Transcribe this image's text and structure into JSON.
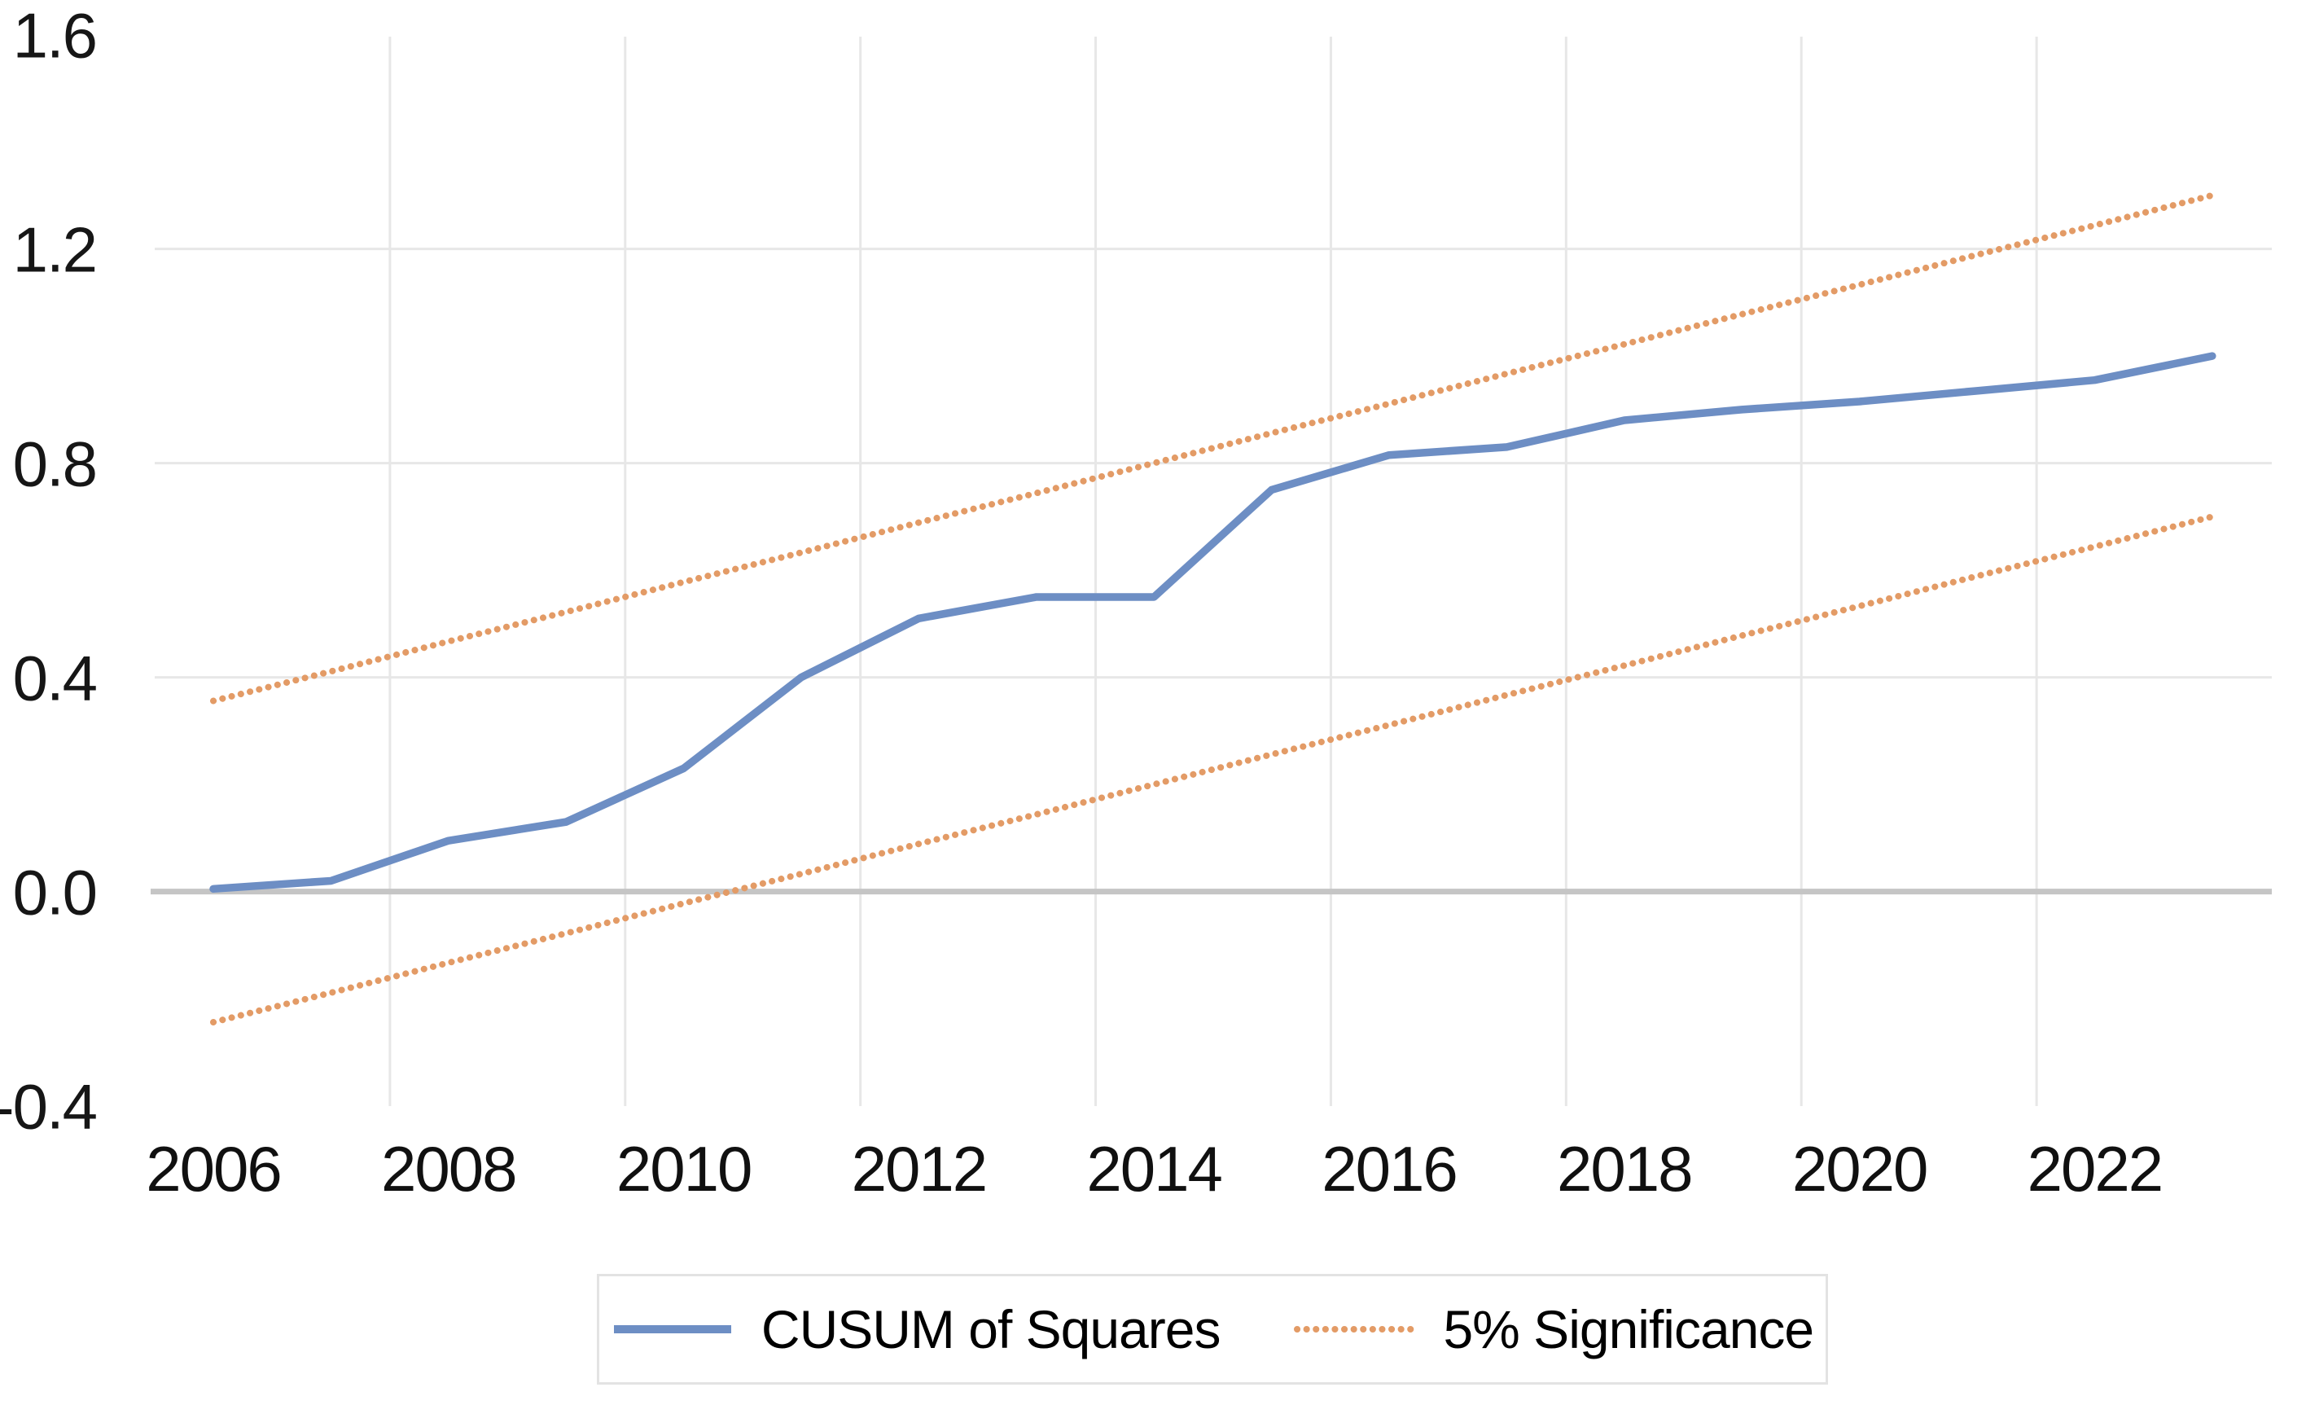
{
  "chart_data": {
    "type": "line",
    "title": "",
    "xlabel": "",
    "ylabel": "",
    "x": [
      2006,
      2007,
      2008,
      2009,
      2010,
      2011,
      2012,
      2013,
      2014,
      2015,
      2016,
      2017,
      2018,
      2019,
      2020,
      2021,
      2022,
      2023
    ],
    "x_tick_labels": [
      "2006",
      "2008",
      "2010",
      "2012",
      "2014",
      "2016",
      "2018",
      "2020",
      "2022"
    ],
    "y_tick_labels": [
      "1.6",
      "1.2",
      "0.8",
      "0.4",
      "0.0",
      "-0.4"
    ],
    "y_tick_values": [
      1.6,
      1.2,
      0.8,
      0.4,
      0.0,
      -0.4
    ],
    "ylim": [
      -0.4,
      1.6
    ],
    "grid": "on",
    "legend_position": "bottom",
    "series": [
      {
        "name": "CUSUM of Squares",
        "style": "solid",
        "color": "#6D8EC4",
        "values": [
          0.005,
          0.02,
          0.095,
          0.13,
          0.23,
          0.4,
          0.51,
          0.55,
          0.55,
          0.75,
          0.815,
          0.83,
          0.88,
          0.9,
          0.915,
          0.935,
          0.955,
          1.0
        ]
      },
      {
        "name": "5% Significance (upper bound)",
        "style": "dotted",
        "color": "#E39B66",
        "values": [
          0.356,
          0.411,
          0.467,
          0.522,
          0.578,
          0.633,
          0.689,
          0.744,
          0.8,
          0.856,
          0.911,
          0.967,
          1.022,
          1.078,
          1.133,
          1.189,
          1.244,
          1.3
        ]
      },
      {
        "name": "5% Significance (lower bound)",
        "style": "dotted",
        "color": "#E39B66",
        "values": [
          -0.244,
          -0.189,
          -0.133,
          -0.078,
          -0.022,
          0.033,
          0.089,
          0.144,
          0.2,
          0.256,
          0.311,
          0.367,
          0.422,
          0.478,
          0.533,
          0.589,
          0.644,
          0.7
        ]
      }
    ],
    "colors": {
      "cusum_line": "#6D8EC4",
      "significance_line": "#E39B66",
      "gridline": "#E7E7E7",
      "zero_axis": "#C5C5C5",
      "tick_text": "#111111",
      "legend_border": "#E3E3E3"
    }
  },
  "legend": {
    "items": [
      {
        "label": "CUSUM of Squares",
        "style": "solid",
        "color": "#6D8EC4"
      },
      {
        "label": "5% Significance",
        "style": "dotted",
        "color": "#E39B66"
      }
    ]
  }
}
